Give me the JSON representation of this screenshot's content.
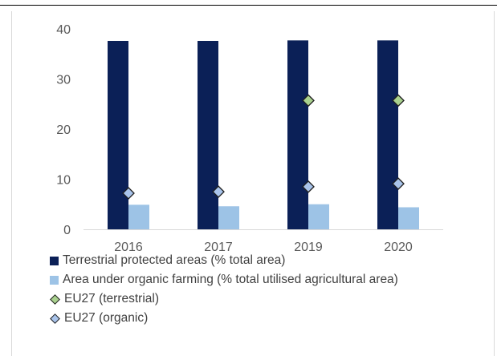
{
  "chart_data": {
    "type": "bar",
    "categories": [
      "2016",
      "2017",
      "2019",
      "2020"
    ],
    "series": [
      {
        "name": "Terrestrial protected areas (% total area)",
        "kind": "bar",
        "color": "#0b2057",
        "values": [
          37.6,
          37.6,
          37.7,
          37.7
        ]
      },
      {
        "name": "Area under organic farming (% total utilised agricultural area)",
        "kind": "bar",
        "color": "#9dc3e6",
        "values": [
          4.9,
          4.6,
          5.0,
          4.4
        ]
      },
      {
        "name": "EU27 (terrestrial)",
        "kind": "marker",
        "color": "#a9d18e",
        "values": [
          null,
          null,
          25.7,
          25.7
        ]
      },
      {
        "name": "EU27 (organic)",
        "kind": "marker",
        "color": "#a9c4eb",
        "values": [
          7.2,
          7.5,
          8.5,
          9.1
        ]
      }
    ],
    "yticks": [
      "0",
      "10",
      "20",
      "30",
      "40"
    ],
    "ylim": [
      0,
      40
    ],
    "title": "",
    "xlabel": "",
    "ylabel": "",
    "grid": false,
    "legend_position": "bottom"
  }
}
